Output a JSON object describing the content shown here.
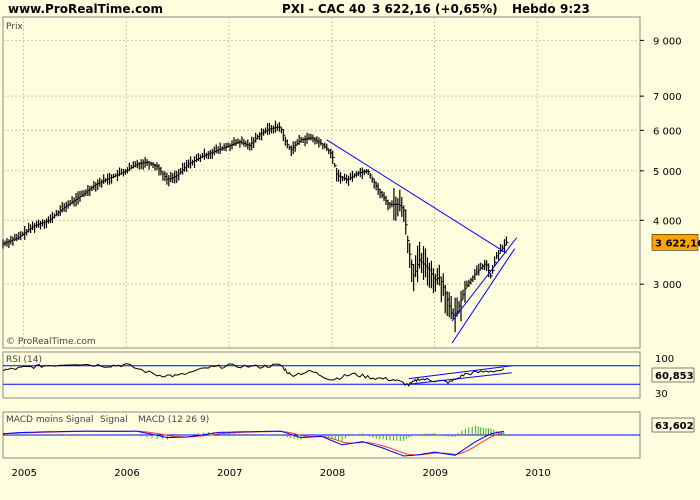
{
  "header": {
    "site": "www.ProRealTime.com",
    "ticker": "PXI - CAC 40",
    "quote": "3 622,16 (+0,65%)",
    "period": "Hebdo",
    "time": "9:23"
  },
  "panels": {
    "price_label": "Prix",
    "watermark": "© ProRealTime.com",
    "rsi_label": "RSI (14)",
    "macd_label_a": "MACD moins Signal",
    "macd_label_b": "Signal",
    "macd_label_c": "MACD (12 26 9)"
  },
  "colors": {
    "background": "#ffffe0",
    "price_bars": "#000000",
    "trendline": "#0000ff",
    "tag": "#ffa500",
    "macd_hist": "#33aa33",
    "macd_signal": "#ff3333",
    "macd_line": "#0000ff"
  },
  "chart_data": {
    "type": "line",
    "title": "PXI - CAC 40",
    "y_ticks": [
      {
        "value": 3000,
        "label": "3 000"
      },
      {
        "value": 4000,
        "label": "4 000"
      },
      {
        "value": 5000,
        "label": "5 000"
      },
      {
        "value": 6000,
        "label": "6 000"
      },
      {
        "value": 7000,
        "label": "7 000"
      },
      {
        "value": 9000,
        "label": "9 000"
      }
    ],
    "y_scale": "log",
    "ylim": [
      2250,
      10000
    ],
    "x_ticks": [
      "2005",
      "2006",
      "2007",
      "2008",
      "2009",
      "2010"
    ],
    "xlim": [
      2004.8,
      2011.0
    ],
    "last_price": "3 622,16",
    "series": [
      {
        "values": [
          [
            2004.8,
            3600
          ],
          [
            2004.95,
            3700
          ],
          [
            2005.1,
            3900
          ],
          [
            2005.25,
            4000
          ],
          [
            2005.4,
            4250
          ],
          [
            2005.55,
            4450
          ],
          [
            2005.7,
            4700
          ],
          [
            2005.85,
            4850
          ],
          [
            2006.0,
            5000
          ],
          [
            2006.1,
            5150
          ],
          [
            2006.2,
            5200
          ],
          [
            2006.3,
            5100
          ],
          [
            2006.4,
            4800
          ],
          [
            2006.5,
            4900
          ],
          [
            2006.6,
            5150
          ],
          [
            2006.75,
            5350
          ],
          [
            2006.9,
            5500
          ],
          [
            2007.0,
            5600
          ],
          [
            2007.1,
            5700
          ],
          [
            2007.2,
            5600
          ],
          [
            2007.3,
            5900
          ],
          [
            2007.4,
            6050
          ],
          [
            2007.5,
            6100
          ],
          [
            2007.55,
            5700
          ],
          [
            2007.6,
            5500
          ],
          [
            2007.7,
            5750
          ],
          [
            2007.8,
            5800
          ],
          [
            2007.9,
            5650
          ],
          [
            2008.0,
            5400
          ],
          [
            2008.05,
            4900
          ],
          [
            2008.15,
            4800
          ],
          [
            2008.25,
            4950
          ],
          [
            2008.35,
            5000
          ],
          [
            2008.45,
            4600
          ],
          [
            2008.55,
            4300
          ],
          [
            2008.65,
            4300
          ],
          [
            2008.7,
            4200
          ],
          [
            2008.75,
            3500
          ],
          [
            2008.8,
            3100
          ],
          [
            2008.85,
            3350
          ],
          [
            2008.95,
            3200
          ],
          [
            2009.0,
            3050
          ],
          [
            2009.05,
            3100
          ],
          [
            2009.1,
            2900
          ],
          [
            2009.17,
            2600
          ],
          [
            2009.22,
            2650
          ],
          [
            2009.3,
            2950
          ],
          [
            2009.4,
            3150
          ],
          [
            2009.5,
            3300
          ],
          [
            2009.55,
            3100
          ],
          [
            2009.6,
            3400
          ],
          [
            2009.65,
            3500
          ],
          [
            2009.7,
            3622
          ]
        ]
      }
    ],
    "trendlines": [
      {
        "from": [
          2007.95,
          5750
        ],
        "to": [
          2009.7,
          3450
        ]
      },
      {
        "from": [
          2009.17,
          2300
        ],
        "to": [
          2009.78,
          3520
        ]
      },
      {
        "from": [
          2009.17,
          2540
        ],
        "to": [
          2009.8,
          3700
        ]
      }
    ],
    "rsi": {
      "label": "RSI (14)",
      "levels": [
        30,
        70
      ],
      "tick_labels": [
        "100",
        "30"
      ],
      "current": "60,853",
      "values": [
        [
          2004.8,
          60
        ],
        [
          2005.0,
          66
        ],
        [
          2005.2,
          70
        ],
        [
          2005.5,
          75
        ],
        [
          2005.8,
          70
        ],
        [
          2006.0,
          72
        ],
        [
          2006.3,
          50
        ],
        [
          2006.5,
          48
        ],
        [
          2006.8,
          66
        ],
        [
          2007.0,
          70
        ],
        [
          2007.3,
          68
        ],
        [
          2007.5,
          72
        ],
        [
          2007.6,
          50
        ],
        [
          2007.8,
          58
        ],
        [
          2008.0,
          40
        ],
        [
          2008.2,
          52
        ],
        [
          2008.4,
          44
        ],
        [
          2008.6,
          40
        ],
        [
          2008.75,
          28
        ],
        [
          2008.85,
          42
        ],
        [
          2009.0,
          38
        ],
        [
          2009.15,
          34
        ],
        [
          2009.3,
          52
        ],
        [
          2009.5,
          58
        ],
        [
          2009.7,
          61
        ]
      ]
    },
    "macd": {
      "label": "MACD (12 26 9)",
      "current": "63,602",
      "values": [
        [
          2004.8,
          20
        ],
        [
          2005.0,
          40
        ],
        [
          2005.3,
          50
        ],
        [
          2005.6,
          60
        ],
        [
          2005.9,
          55
        ],
        [
          2006.1,
          60
        ],
        [
          2006.4,
          -40
        ],
        [
          2006.6,
          -30
        ],
        [
          2006.9,
          40
        ],
        [
          2007.2,
          50
        ],
        [
          2007.5,
          60
        ],
        [
          2007.7,
          -40
        ],
        [
          2007.9,
          -20
        ],
        [
          2008.1,
          -150
        ],
        [
          2008.3,
          -100
        ],
        [
          2008.5,
          -200
        ],
        [
          2008.7,
          -320
        ],
        [
          2008.85,
          -300
        ],
        [
          2009.0,
          -260
        ],
        [
          2009.2,
          -310
        ],
        [
          2009.4,
          -100
        ],
        [
          2009.55,
          20
        ],
        [
          2009.7,
          64
        ]
      ]
    }
  }
}
